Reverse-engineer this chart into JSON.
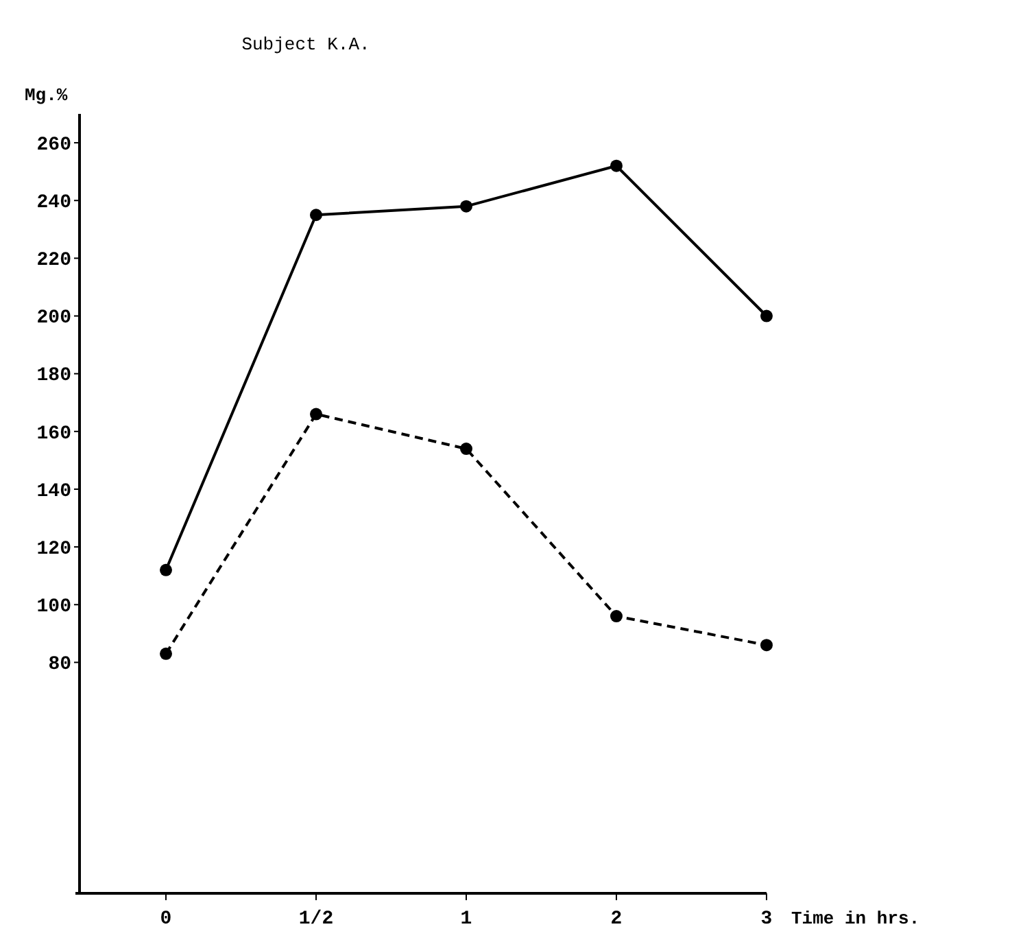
{
  "chart_data": {
    "type": "line",
    "title": "Subject K.A.",
    "xlabel": "Time in hrs.",
    "ylabel": "Mg.%",
    "categories": [
      "0",
      "1/2",
      "1",
      "2",
      "3"
    ],
    "series": [
      {
        "color": "#000000",
        "line_style": "solid",
        "values": [
          112,
          235,
          238,
          252,
          200
        ]
      },
      {
        "color": "#000000",
        "line_style": "dashed",
        "values": [
          83,
          166,
          154,
          96,
          86
        ]
      }
    ],
    "ylim": [
      0,
      270
    ],
    "yticks": [
      80,
      100,
      120,
      140,
      160,
      180,
      200,
      220,
      240,
      260
    ],
    "marker": "circle",
    "grid": false
  }
}
